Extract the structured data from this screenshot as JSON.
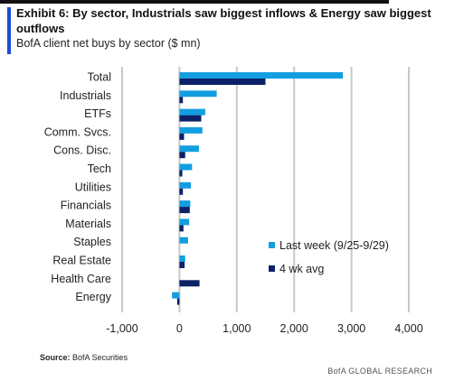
{
  "header": {
    "title": "Exhibit 6: By sector, Industrials saw biggest inflows & Energy saw biggest outflows",
    "subtitle": "BofA client net buys by sector ($ mn)"
  },
  "footer": {
    "source_label": "Source:",
    "source_text": "BofA Securities",
    "brand": "BofA GLOBAL RESEARCH"
  },
  "chart_data": {
    "type": "bar",
    "orientation": "horizontal",
    "categories": [
      "Total",
      "Industrials",
      "ETFs",
      "Comm. Svcs.",
      "Cons. Disc.",
      "Tech",
      "Utilities",
      "Financials",
      "Materials",
      "Staples",
      "Real Estate",
      "Health Care",
      "Energy"
    ],
    "series": [
      {
        "name": "Last week (9/25-9/29)",
        "color": "#139ee0",
        "values": [
          2850,
          650,
          450,
          400,
          340,
          220,
          200,
          190,
          170,
          150,
          100,
          0,
          -130
        ]
      },
      {
        "name": "4 wk avg",
        "color": "#0c2166",
        "values": [
          1500,
          60,
          380,
          80,
          100,
          50,
          60,
          180,
          70,
          0,
          90,
          350,
          -40
        ]
      }
    ],
    "xlim": [
      -1000,
      4000
    ],
    "xticks": [
      "-1,000",
      "0",
      "1,000",
      "2,000",
      "3,000",
      "4,000"
    ],
    "xtick_values": [
      -1000,
      0,
      1000,
      2000,
      3000,
      4000
    ],
    "grid": true,
    "legend_position": "bottom-right"
  }
}
